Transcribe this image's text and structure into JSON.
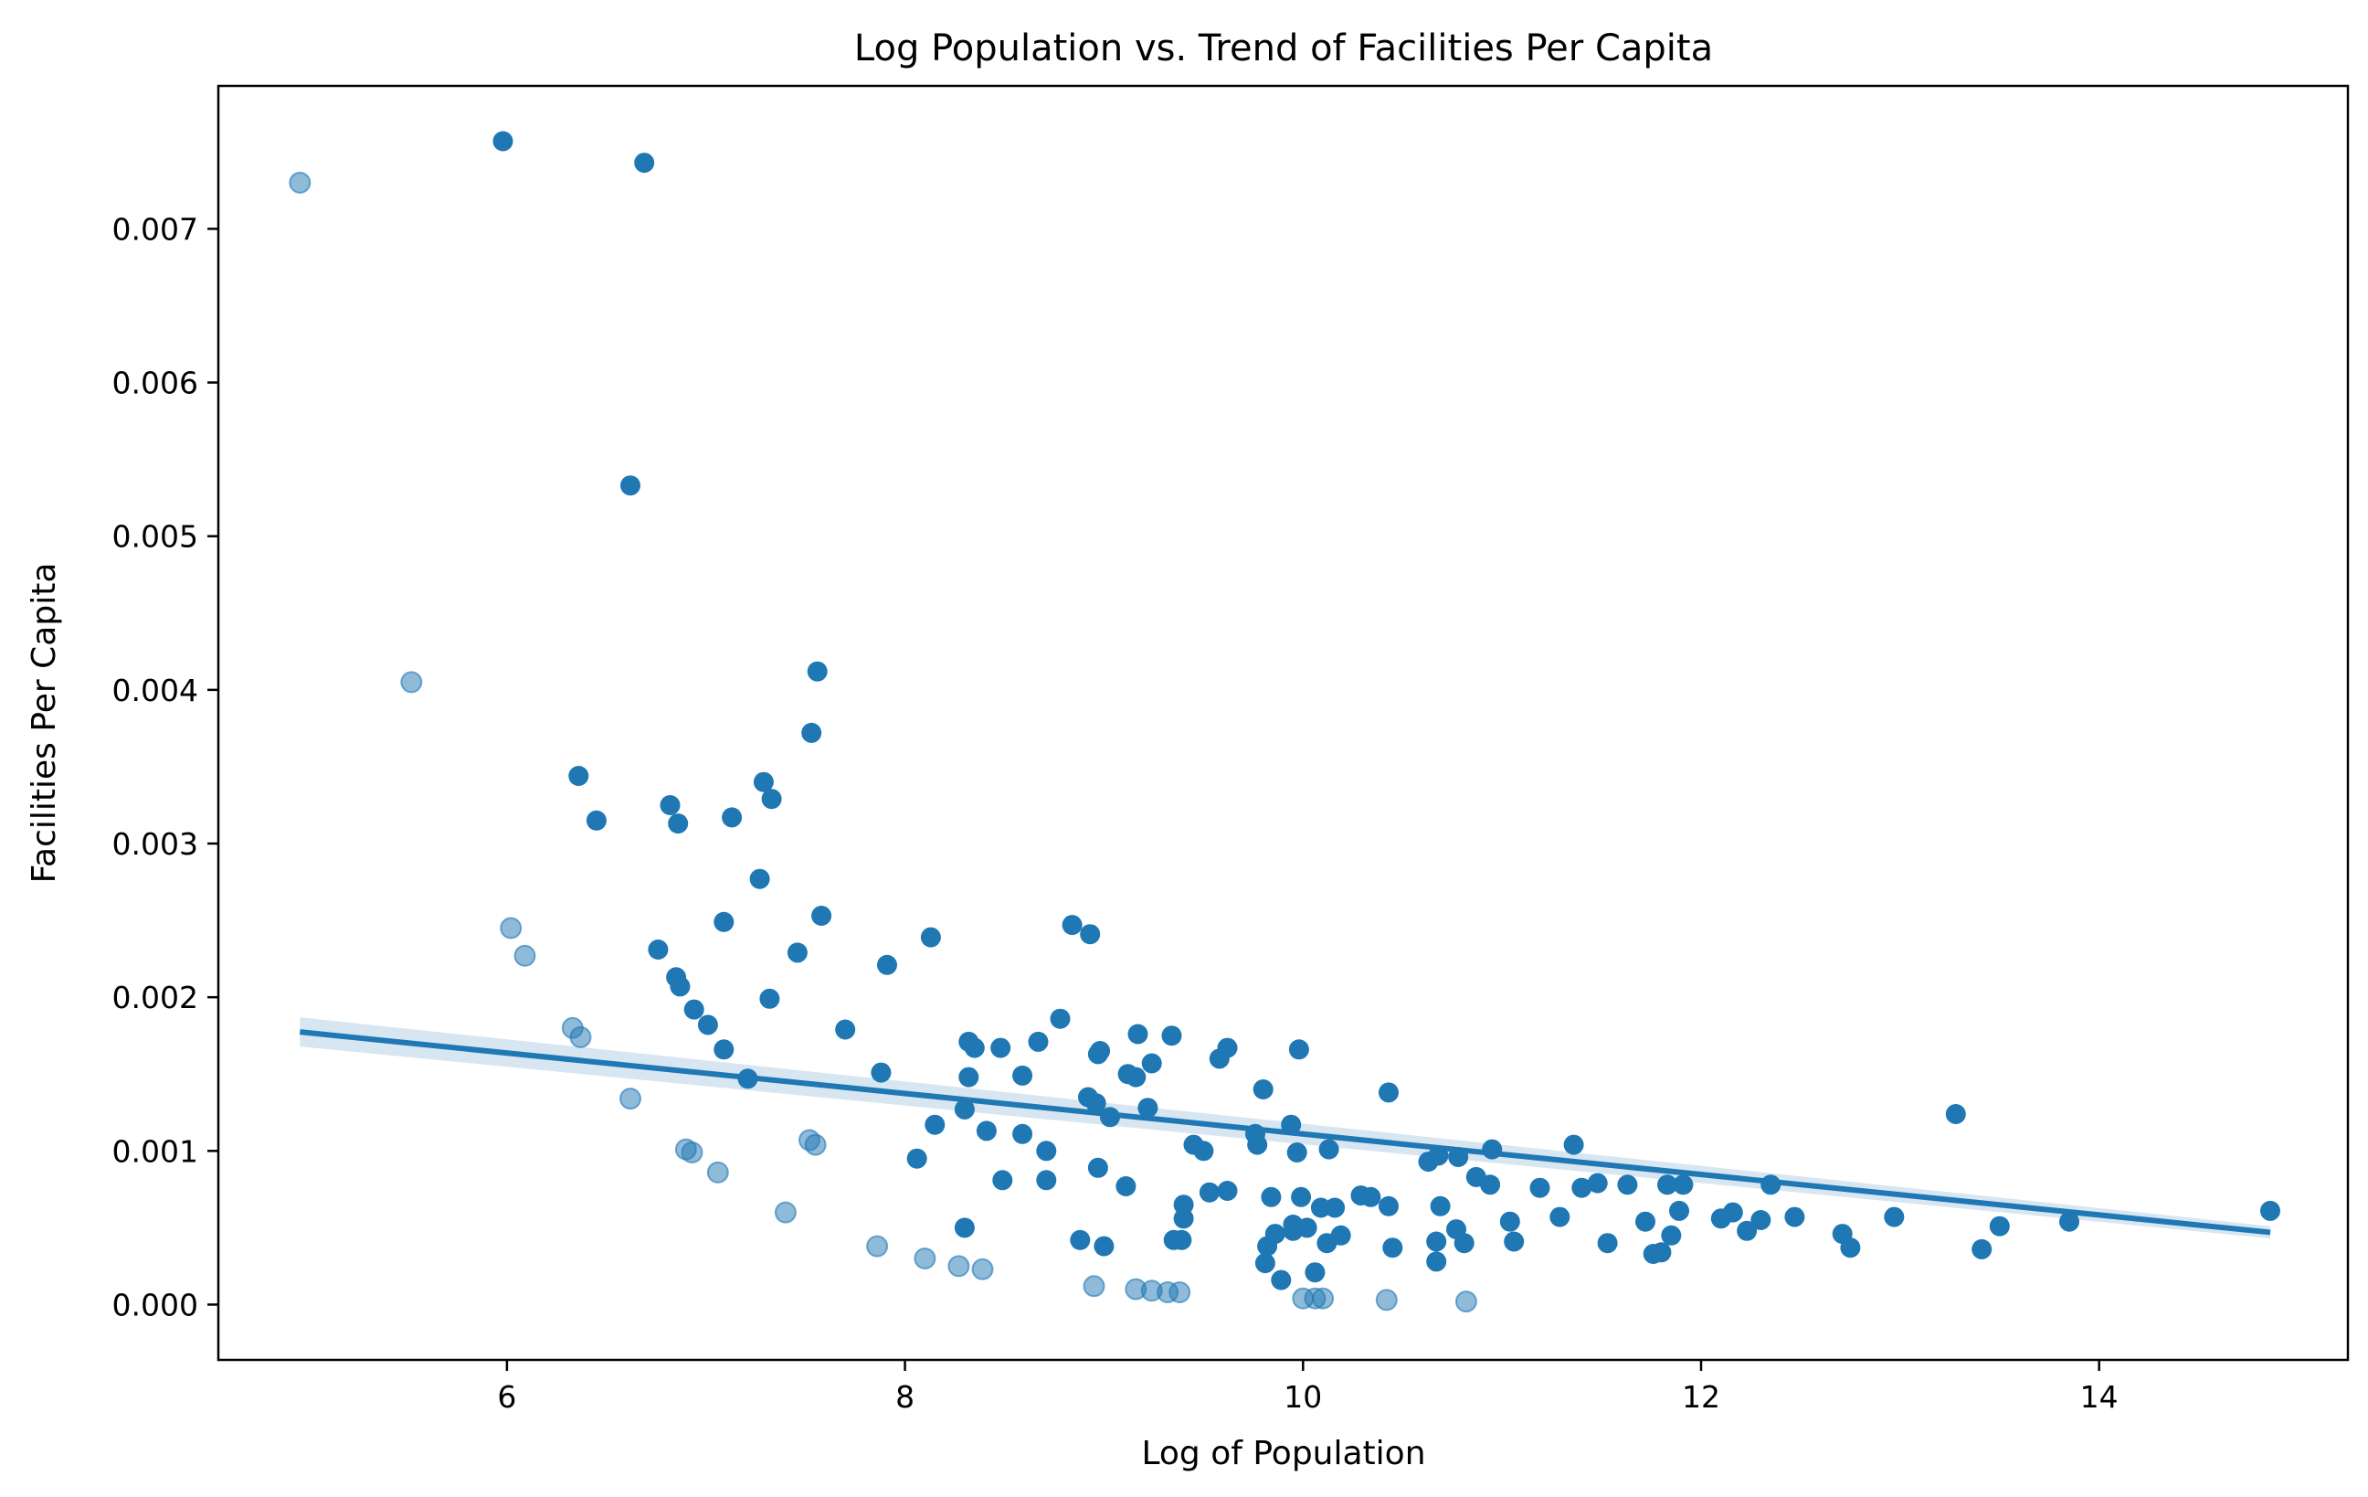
{
  "chart_data": {
    "type": "scatter",
    "title": "Log Population vs. Trend of Facilities Per Capita",
    "xlabel": "Log of Population",
    "ylabel": "Facilities Per Capita",
    "xlim": [
      4.55,
      15.25
    ],
    "ylim": [
      -0.00036,
      0.00793
    ],
    "xticks": [
      6,
      8,
      10,
      12,
      14
    ],
    "yticks": [
      0.0,
      0.001,
      0.002,
      0.003,
      0.004,
      0.005,
      0.006,
      0.007
    ],
    "ytick_decimals": 3,
    "grid": false,
    "color": "#1f77b4",
    "series": [
      {
        "points": [
          [
            5.98,
            0.00757
          ],
          [
            6.69,
            0.00743
          ],
          [
            6.62,
            0.00533
          ],
          [
            7.56,
            0.00412
          ],
          [
            7.53,
            0.00372
          ],
          [
            6.36,
            0.00344
          ],
          [
            7.29,
            0.0034
          ],
          [
            7.33,
            0.00329
          ],
          [
            6.82,
            0.00325
          ],
          [
            6.45,
            0.00315
          ],
          [
            6.86,
            0.00313
          ],
          [
            7.13,
            0.00317
          ],
          [
            7.27,
            0.00277
          ],
          [
            7.58,
            0.00253
          ],
          [
            7.09,
            0.00249
          ],
          [
            8.13,
            0.00239
          ],
          [
            8.84,
            0.00247
          ],
          [
            8.93,
            0.00241
          ],
          [
            7.46,
            0.00229
          ],
          [
            6.76,
            0.00231
          ],
          [
            7.91,
            0.00221
          ],
          [
            6.85,
            0.00213
          ],
          [
            6.87,
            0.00207
          ],
          [
            7.32,
            0.00199
          ],
          [
            6.94,
            0.00192
          ],
          [
            7.01,
            0.00182
          ],
          [
            7.7,
            0.00179
          ],
          [
            8.78,
            0.00186
          ],
          [
            8.67,
            0.00171
          ],
          [
            8.32,
            0.00171
          ],
          [
            8.35,
            0.00167
          ],
          [
            8.48,
            0.00167
          ],
          [
            9.17,
            0.00176
          ],
          [
            9.34,
            0.00175
          ],
          [
            7.09,
            0.00166
          ],
          [
            8.97,
            0.00163
          ],
          [
            8.98,
            0.00165
          ],
          [
            9.62,
            0.00167
          ],
          [
            9.58,
            0.0016
          ],
          [
            9.98,
            0.00166
          ],
          [
            9.24,
            0.00157
          ],
          [
            9.12,
            0.0015
          ],
          [
            9.16,
            0.00148
          ],
          [
            7.88,
            0.00151
          ],
          [
            8.59,
            0.00149
          ],
          [
            8.32,
            0.00148
          ],
          [
            7.21,
            0.00147
          ],
          [
            9.8,
            0.0014
          ],
          [
            10.43,
            0.00138
          ],
          [
            8.92,
            0.00135
          ],
          [
            8.96,
            0.00131
          ],
          [
            9.22,
            0.00128
          ],
          [
            8.3,
            0.00127
          ],
          [
            9.03,
            0.00122
          ],
          [
            8.15,
            0.00117
          ],
          [
            9.94,
            0.00117
          ],
          [
            8.41,
            0.00113
          ],
          [
            8.59,
            0.00111
          ],
          [
            9.76,
            0.00111
          ],
          [
            9.45,
            0.00104
          ],
          [
            9.77,
            0.00104
          ],
          [
            9.5,
            0.001
          ],
          [
            8.71,
            0.001
          ],
          [
            9.97,
            0.00099
          ],
          [
            10.13,
            0.00101
          ],
          [
            10.68,
            0.00097
          ],
          [
            10.78,
            0.00096
          ],
          [
            10.63,
            0.00093
          ],
          [
            10.95,
            0.00101
          ],
          [
            11.36,
            0.00104
          ],
          [
            13.28,
            0.00124
          ],
          [
            8.06,
            0.00095
          ],
          [
            8.97,
            0.00089
          ],
          [
            10.87,
            0.00083
          ],
          [
            10.94,
            0.00078
          ],
          [
            11.19,
            0.00076
          ],
          [
            11.4,
            0.00076
          ],
          [
            11.48,
            0.00079
          ],
          [
            11.63,
            0.00078
          ],
          [
            11.83,
            0.00078
          ],
          [
            11.91,
            0.00078
          ],
          [
            12.35,
            0.00078
          ],
          [
            8.71,
            0.00081
          ],
          [
            8.49,
            0.00081
          ],
          [
            9.11,
            0.00077
          ],
          [
            9.53,
            0.00073
          ],
          [
            9.62,
            0.00074
          ],
          [
            9.84,
            0.0007
          ],
          [
            9.99,
            0.0007
          ],
          [
            10.29,
            0.00071
          ],
          [
            10.34,
            0.0007
          ],
          [
            9.4,
            0.00065
          ],
          [
            10.09,
            0.00063
          ],
          [
            10.16,
            0.00063
          ],
          [
            10.43,
            0.00064
          ],
          [
            10.69,
            0.00064
          ],
          [
            11.29,
            0.00057
          ],
          [
            11.89,
            0.00061
          ],
          [
            12.1,
            0.00056
          ],
          [
            12.16,
            0.0006
          ],
          [
            12.3,
            0.00055
          ],
          [
            12.47,
            0.00057
          ],
          [
            12.97,
            0.00057
          ],
          [
            14.86,
            0.00061
          ],
          [
            9.4,
            0.00056
          ],
          [
            9.95,
            0.00052
          ],
          [
            10.02,
            0.0005
          ],
          [
            9.86,
            0.00046
          ],
          [
            9.95,
            0.00048
          ],
          [
            10.19,
            0.00045
          ],
          [
            10.12,
            0.0004
          ],
          [
            10.45,
            0.00037
          ],
          [
            10.67,
            0.00041
          ],
          [
            10.77,
            0.00049
          ],
          [
            10.81,
            0.0004
          ],
          [
            11.04,
            0.00054
          ],
          [
            11.06,
            0.00041
          ],
          [
            11.53,
            0.0004
          ],
          [
            11.72,
            0.00054
          ],
          [
            11.76,
            0.00033
          ],
          [
            11.8,
            0.00034
          ],
          [
            11.85,
            0.00045
          ],
          [
            12.23,
            0.00048
          ],
          [
            12.71,
            0.00046
          ],
          [
            12.75,
            0.00037
          ],
          [
            13.41,
            0.00036
          ],
          [
            13.5,
            0.00051
          ],
          [
            13.85,
            0.00054
          ],
          [
            8.88,
            0.00042
          ],
          [
            9.0,
            0.00038
          ],
          [
            9.35,
            0.00042
          ],
          [
            9.39,
            0.00042
          ],
          [
            9.82,
            0.00038
          ],
          [
            9.81,
            0.00027
          ],
          [
            9.89,
            0.00016
          ],
          [
            10.06,
            0.00021
          ],
          [
            10.67,
            0.00028
          ],
          [
            8.3,
            0.0005
          ]
        ]
      },
      {
        "faded": true,
        "points": [
          [
            4.96,
            0.0073
          ],
          [
            5.52,
            0.00405
          ],
          [
            6.02,
            0.00245
          ],
          [
            6.09,
            0.00227
          ],
          [
            6.33,
            0.0018
          ],
          [
            6.37,
            0.00174
          ],
          [
            6.62,
            0.00134
          ],
          [
            6.9,
            0.00101
          ],
          [
            6.93,
            0.00099
          ],
          [
            7.06,
            0.00086
          ],
          [
            7.4,
            0.0006
          ],
          [
            7.52,
            0.00107
          ],
          [
            7.55,
            0.00104
          ],
          [
            7.86,
            0.00038
          ],
          [
            8.1,
            0.0003
          ],
          [
            8.27,
            0.00025
          ],
          [
            8.39,
            0.00023
          ],
          [
            8.95,
            0.00012
          ],
          [
            9.16,
            0.0001
          ],
          [
            9.24,
            9e-05
          ],
          [
            9.32,
            8e-05
          ],
          [
            9.38,
            8e-05
          ],
          [
            10.0,
            4e-05
          ],
          [
            10.06,
            4e-05
          ],
          [
            10.1,
            4e-05
          ],
          [
            10.42,
            3e-05
          ],
          [
            10.82,
            2e-05
          ]
        ]
      }
    ],
    "regression": {
      "x": [
        4.96,
        14.86
      ],
      "y": [
        0.001774,
        0.00047
      ],
      "ci_half_width": [
        9.5e-05,
        4e-05
      ]
    }
  }
}
